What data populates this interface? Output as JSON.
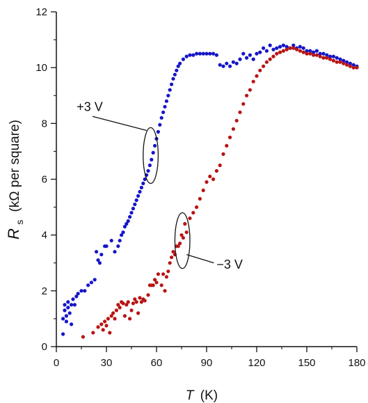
{
  "chart_data": {
    "type": "scatter",
    "title": "",
    "xlabel": {
      "symbol": "T",
      "unit": "(K)"
    },
    "ylabel": {
      "symbol": "R",
      "subscript": "s",
      "unit": "(kΩ per square)"
    },
    "xlim": [
      0,
      180
    ],
    "ylim": [
      0,
      12
    ],
    "x_ticks": [
      0,
      30,
      60,
      90,
      120,
      150,
      180
    ],
    "y_ticks": [
      0,
      2,
      4,
      6,
      8,
      10,
      12
    ],
    "grid": false,
    "series": [
      {
        "name": "+3 V",
        "color": "#1515c8",
        "points": [
          [
            4,
            0.45
          ],
          [
            4,
            1.0
          ],
          [
            5,
            1.3
          ],
          [
            5,
            1.5
          ],
          [
            6,
            0.9
          ],
          [
            6,
            1.1
          ],
          [
            7,
            1.4
          ],
          [
            7,
            1.6
          ],
          [
            8,
            1.2
          ],
          [
            9,
            0.8
          ],
          [
            9,
            1.5
          ],
          [
            10,
            1.7
          ],
          [
            11,
            1.5
          ],
          [
            12,
            1.8
          ],
          [
            13,
            1.9
          ],
          [
            15,
            2.0
          ],
          [
            17,
            2.0
          ],
          [
            19,
            2.2
          ],
          [
            21,
            2.3
          ],
          [
            23,
            2.4
          ],
          [
            24,
            3.4
          ],
          [
            25,
            3.1
          ],
          [
            26,
            3.0
          ],
          [
            27,
            3.3
          ],
          [
            29,
            3.6
          ],
          [
            30,
            3.6
          ],
          [
            33,
            3.8
          ],
          [
            35,
            3.4
          ],
          [
            37,
            3.6
          ],
          [
            38,
            3.8
          ],
          [
            39,
            4.0
          ],
          [
            40,
            4.1
          ],
          [
            41,
            4.3
          ],
          [
            42,
            4.4
          ],
          [
            43,
            4.5
          ],
          [
            44,
            4.65
          ],
          [
            45,
            4.8
          ],
          [
            46,
            4.95
          ],
          [
            47,
            5.1
          ],
          [
            48,
            5.25
          ],
          [
            49,
            5.4
          ],
          [
            50,
            5.55
          ],
          [
            51,
            5.7
          ],
          [
            52,
            5.85
          ],
          [
            53,
            6.0
          ],
          [
            54,
            6.15
          ],
          [
            55,
            6.3
          ],
          [
            56,
            6.5
          ],
          [
            57,
            6.7
          ],
          [
            58,
            6.95
          ],
          [
            59,
            7.2
          ],
          [
            60,
            7.45
          ],
          [
            61,
            7.7
          ],
          [
            62,
            7.95
          ],
          [
            63,
            8.2
          ],
          [
            64,
            8.4
          ],
          [
            65,
            8.6
          ],
          [
            66,
            8.8
          ],
          [
            67,
            9.0
          ],
          [
            68,
            9.2
          ],
          [
            69,
            9.4
          ],
          [
            70,
            9.6
          ],
          [
            71,
            9.75
          ],
          [
            72,
            9.9
          ],
          [
            73,
            10.05
          ],
          [
            74,
            10.15
          ],
          [
            76,
            10.3
          ],
          [
            78,
            10.4
          ],
          [
            80,
            10.45
          ],
          [
            82,
            10.45
          ],
          [
            84,
            10.5
          ],
          [
            86,
            10.5
          ],
          [
            88,
            10.5
          ],
          [
            90,
            10.5
          ],
          [
            92,
            10.5
          ],
          [
            94,
            10.5
          ],
          [
            96,
            10.45
          ],
          [
            98,
            10.1
          ],
          [
            100,
            10.05
          ],
          [
            102,
            10.15
          ],
          [
            104,
            10.05
          ],
          [
            106,
            10.2
          ],
          [
            108,
            10.15
          ],
          [
            110,
            10.3
          ],
          [
            112,
            10.5
          ],
          [
            114,
            10.35
          ],
          [
            116,
            10.45
          ],
          [
            118,
            10.3
          ],
          [
            120,
            10.5
          ],
          [
            122,
            10.55
          ],
          [
            124,
            10.7
          ],
          [
            126,
            10.6
          ],
          [
            128,
            10.8
          ],
          [
            130,
            10.65
          ],
          [
            132,
            10.7
          ],
          [
            134,
            10.75
          ],
          [
            136,
            10.8
          ],
          [
            138,
            10.75
          ],
          [
            140,
            10.7
          ],
          [
            142,
            10.8
          ],
          [
            144,
            10.7
          ],
          [
            146,
            10.75
          ],
          [
            148,
            10.7
          ],
          [
            150,
            10.6
          ],
          [
            152,
            10.6
          ],
          [
            154,
            10.55
          ],
          [
            156,
            10.6
          ],
          [
            158,
            10.5
          ],
          [
            160,
            10.5
          ],
          [
            162,
            10.45
          ],
          [
            164,
            10.4
          ],
          [
            166,
            10.4
          ],
          [
            168,
            10.35
          ],
          [
            170,
            10.3
          ],
          [
            172,
            10.25
          ],
          [
            174,
            10.2
          ],
          [
            176,
            10.15
          ],
          [
            178,
            10.1
          ],
          [
            180,
            10.05
          ]
        ]
      },
      {
        "name": "−3 V",
        "color": "#b81414",
        "points": [
          [
            16,
            0.35
          ],
          [
            22,
            0.5
          ],
          [
            25,
            0.7
          ],
          [
            27,
            0.8
          ],
          [
            28,
            0.6
          ],
          [
            29,
            0.9
          ],
          [
            30,
            0.75
          ],
          [
            31,
            1.0
          ],
          [
            32,
            0.5
          ],
          [
            33,
            1.1
          ],
          [
            34,
            1.2
          ],
          [
            35,
            1.0
          ],
          [
            36,
            1.3
          ],
          [
            37,
            1.5
          ],
          [
            38,
            1.4
          ],
          [
            39,
            1.6
          ],
          [
            40,
            1.55
          ],
          [
            41,
            1.1
          ],
          [
            42,
            1.5
          ],
          [
            43,
            1.6
          ],
          [
            44,
            1.0
          ],
          [
            45,
            1.3
          ],
          [
            46,
            1.55
          ],
          [
            47,
            1.7
          ],
          [
            48,
            1.6
          ],
          [
            49,
            1.2
          ],
          [
            50,
            1.75
          ],
          [
            51,
            1.6
          ],
          [
            52,
            1.7
          ],
          [
            53,
            1.65
          ],
          [
            55,
            1.85
          ],
          [
            56,
            2.2
          ],
          [
            57,
            2.2
          ],
          [
            58,
            2.2
          ],
          [
            59,
            2.4
          ],
          [
            60,
            2.3
          ],
          [
            61,
            2.6
          ],
          [
            63,
            2.2
          ],
          [
            64,
            2.6
          ],
          [
            65,
            2.0
          ],
          [
            66,
            2.5
          ],
          [
            67,
            2.7
          ],
          [
            68,
            3.0
          ],
          [
            69,
            3.2
          ],
          [
            70,
            3.4
          ],
          [
            71,
            3.3
          ],
          [
            72,
            3.6
          ],
          [
            73,
            3.6
          ],
          [
            74,
            3.7
          ],
          [
            75,
            4.0
          ],
          [
            76,
            3.9
          ],
          [
            77,
            4.4
          ],
          [
            78,
            4.1
          ],
          [
            80,
            4.6
          ],
          [
            82,
            4.8
          ],
          [
            84,
            5.0
          ],
          [
            86,
            5.3
          ],
          [
            88,
            5.6
          ],
          [
            90,
            5.9
          ],
          [
            92,
            6.1
          ],
          [
            94,
            6.0
          ],
          [
            96,
            6.3
          ],
          [
            98,
            6.5
          ],
          [
            100,
            6.9
          ],
          [
            102,
            7.2
          ],
          [
            104,
            7.5
          ],
          [
            106,
            7.8
          ],
          [
            108,
            8.1
          ],
          [
            110,
            8.4
          ],
          [
            112,
            8.7
          ],
          [
            114,
            9.0
          ],
          [
            116,
            9.2
          ],
          [
            118,
            9.5
          ],
          [
            120,
            9.7
          ],
          [
            122,
            9.9
          ],
          [
            124,
            10.05
          ],
          [
            126,
            10.2
          ],
          [
            128,
            10.3
          ],
          [
            130,
            10.4
          ],
          [
            132,
            10.5
          ],
          [
            134,
            10.55
          ],
          [
            136,
            10.6
          ],
          [
            138,
            10.65
          ],
          [
            140,
            10.7
          ],
          [
            142,
            10.7
          ],
          [
            144,
            10.65
          ],
          [
            146,
            10.6
          ],
          [
            148,
            10.55
          ],
          [
            150,
            10.5
          ],
          [
            152,
            10.5
          ],
          [
            154,
            10.45
          ],
          [
            156,
            10.45
          ],
          [
            158,
            10.4
          ],
          [
            160,
            10.35
          ],
          [
            162,
            10.35
          ],
          [
            164,
            10.3
          ],
          [
            166,
            10.25
          ],
          [
            168,
            10.2
          ],
          [
            170,
            10.2
          ],
          [
            172,
            10.15
          ],
          [
            174,
            10.1
          ],
          [
            176,
            10.05
          ],
          [
            178,
            10.0
          ],
          [
            180,
            10.0
          ]
        ]
      }
    ],
    "annotations": [
      {
        "text": "+3 V",
        "ellipse_center": [
          56.5,
          6.85
        ],
        "ellipse_radius": [
          4.5,
          1.0
        ],
        "text_pos": [
          20,
          8.45
        ],
        "line_to": [
          54,
          7.75
        ]
      },
      {
        "text": "−3 V",
        "ellipse_center": [
          75.5,
          3.8
        ],
        "ellipse_radius": [
          4.5,
          1.0
        ],
        "text_pos": [
          96,
          2.8
        ],
        "line_to": [
          78,
          3.3
        ]
      }
    ]
  }
}
